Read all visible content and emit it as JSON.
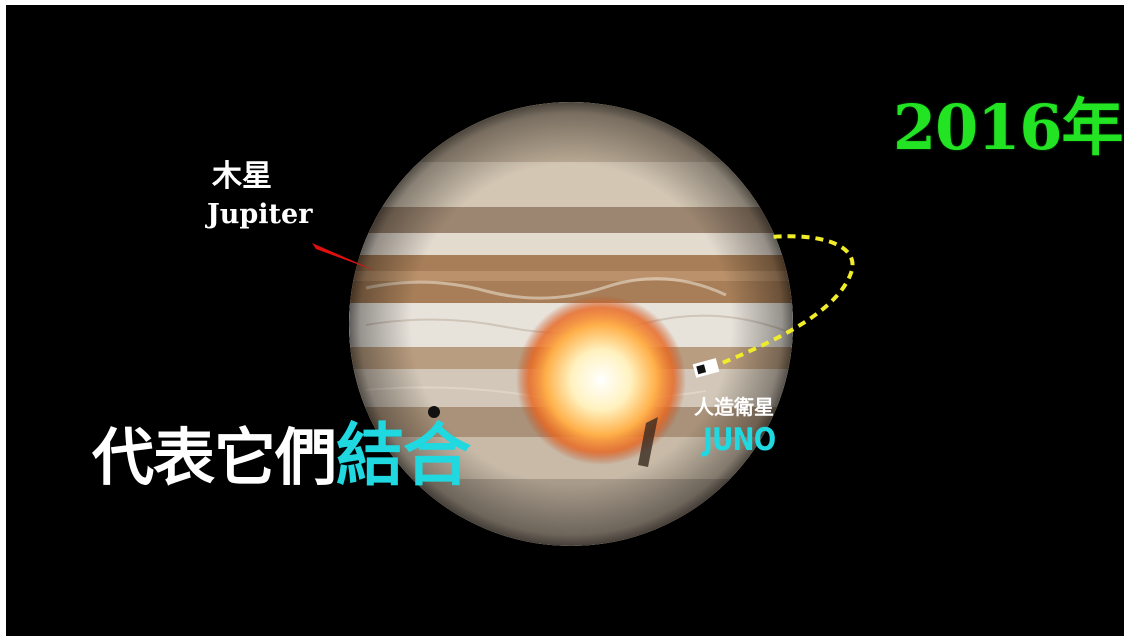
{
  "scene": {
    "year_label": "2016年",
    "planet": {
      "name_cn": "木星",
      "name_en": "Jupiter"
    },
    "satellite": {
      "name_cn": "人造衛星",
      "name_en": "JUNO"
    },
    "caption": {
      "plain": "代表它們",
      "emphasis": "結合"
    }
  },
  "colors": {
    "background": "#000000",
    "year": "#22e422",
    "label": "#ffffff",
    "emphasis": "#1fd8e0",
    "pointer": "#e01010",
    "orbit_path": "#f0ec2a"
  }
}
